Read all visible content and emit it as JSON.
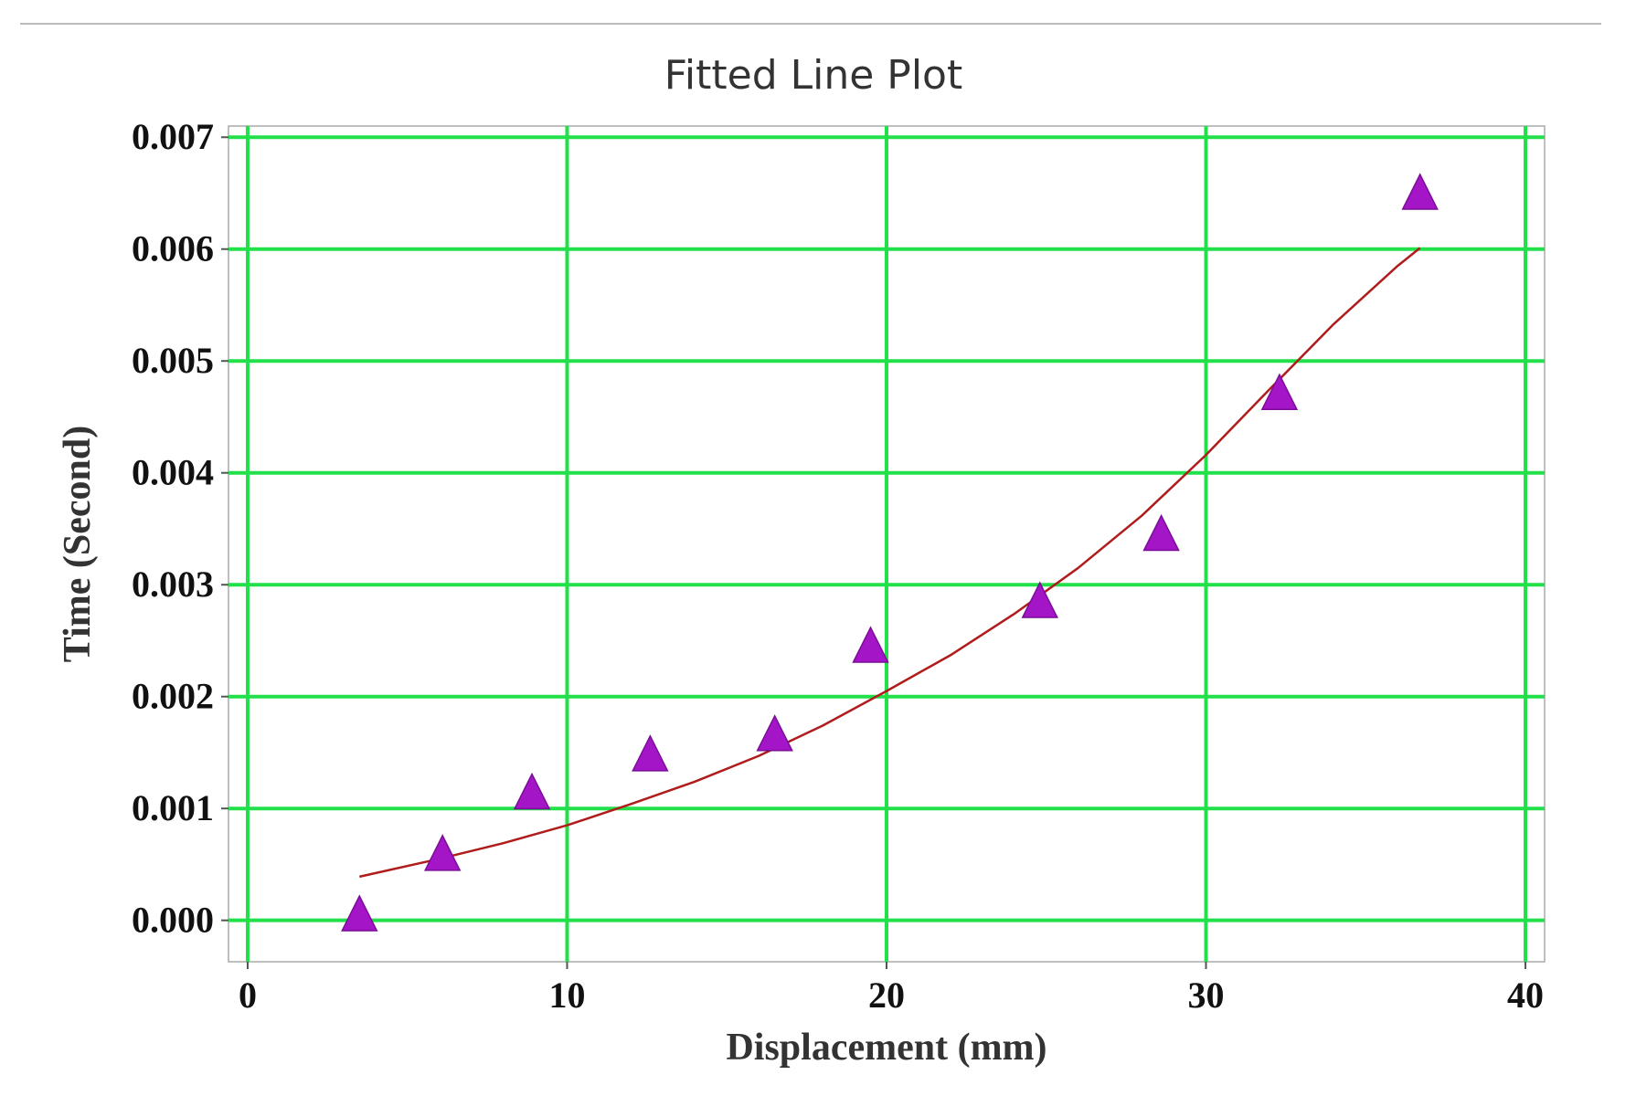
{
  "chart_data": {
    "type": "scatter",
    "title": "Fitted Line Plot",
    "xlabel": "Displacement (mm)",
    "ylabel": "Time (Second)",
    "xlim": [
      -0.6,
      40.6
    ],
    "ylim": [
      -0.00037,
      0.0071
    ],
    "xticks": [
      0,
      10,
      20,
      30,
      40
    ],
    "xtick_labels": [
      "0",
      "10",
      "20",
      "30",
      "40"
    ],
    "yticks": [
      0.0,
      0.001,
      0.002,
      0.003,
      0.004,
      0.005,
      0.006,
      0.007
    ],
    "ytick_labels": [
      "0.000",
      "0.001",
      "0.002",
      "0.003",
      "0.004",
      "0.005",
      "0.006",
      "0.007"
    ],
    "grid": true,
    "legend": "none",
    "colors": {
      "grid": "#22e04a",
      "points": "#a515c8",
      "points_stroke": "#7a0d96",
      "fit_line": "#b01c1c",
      "frame": "#aaaaaa",
      "top_rule": "#bbbbbb"
    },
    "marker": "triangle",
    "points": {
      "x": [
        3.5,
        6.1,
        8.9,
        12.6,
        16.5,
        19.5,
        24.8,
        28.6,
        32.3,
        36.7
      ],
      "y": [
        3e-05,
        0.00057,
        0.00112,
        0.00146,
        0.00164,
        0.00243,
        0.00283,
        0.00343,
        0.00469,
        0.00648
      ]
    },
    "fit_line": {
      "x": [
        3.5,
        6,
        8,
        10,
        12,
        14,
        16,
        18,
        20,
        22,
        24,
        26,
        28,
        30,
        32,
        34,
        36,
        36.7
      ],
      "y": [
        0.00039,
        0.00055,
        0.00069,
        0.00085,
        0.00104,
        0.00124,
        0.00147,
        0.00174,
        0.00205,
        0.00237,
        0.00274,
        0.00315,
        0.00362,
        0.00416,
        0.00475,
        0.00533,
        0.00585,
        0.00601
      ]
    }
  }
}
